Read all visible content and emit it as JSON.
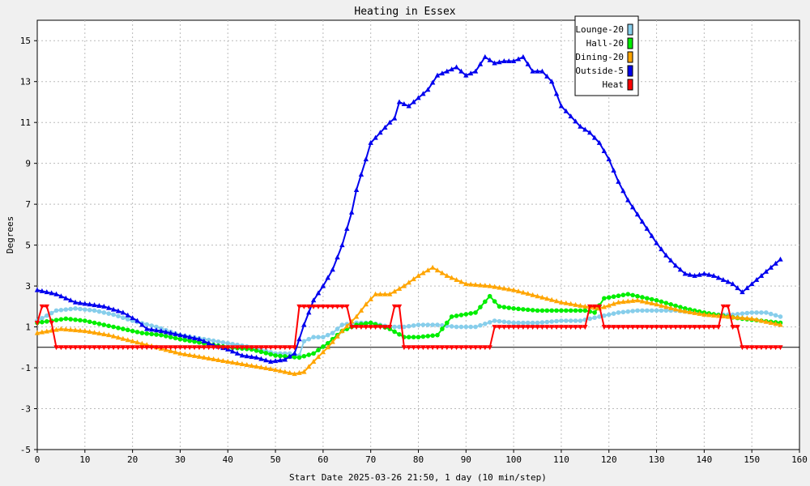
{
  "chart_data": {
    "type": "line",
    "title": "Heating in Essex",
    "xlabel": "Start Date 2025-03-26 21:50, 1 day (10 min/step)",
    "ylabel": "Degrees",
    "xlim": [
      0,
      160
    ],
    "ylim": [
      -5,
      16
    ],
    "xticks": [
      0,
      10,
      20,
      30,
      40,
      50,
      60,
      70,
      80,
      90,
      100,
      110,
      120,
      130,
      140,
      150,
      160
    ],
    "yticks": [
      -5,
      -3,
      -1,
      1,
      3,
      5,
      7,
      9,
      11,
      13,
      15
    ],
    "grid": true,
    "zero_line": true,
    "legend_position": "top-right",
    "series": [
      {
        "name": "Lounge-20",
        "color": "#87ceeb",
        "marker": "circle",
        "points": [
          [
            0,
            1.3
          ],
          [
            4,
            1.8
          ],
          [
            8,
            1.9
          ],
          [
            12,
            1.8
          ],
          [
            16,
            1.6
          ],
          [
            20,
            1.3
          ],
          [
            25,
            1.0
          ],
          [
            30,
            0.6
          ],
          [
            35,
            0.4
          ],
          [
            40,
            0.2
          ],
          [
            45,
            0.0
          ],
          [
            50,
            -0.3
          ],
          [
            53,
            -0.3
          ],
          [
            55,
            -0.4
          ],
          [
            56,
            0.3
          ],
          [
            58,
            0.5
          ],
          [
            60,
            0.5
          ],
          [
            62,
            0.7
          ],
          [
            64,
            1.1
          ],
          [
            67,
            1.2
          ],
          [
            70,
            1.2
          ],
          [
            74,
            1.0
          ],
          [
            77,
            1.0
          ],
          [
            80,
            1.1
          ],
          [
            84,
            1.1
          ],
          [
            88,
            1.0
          ],
          [
            92,
            1.0
          ],
          [
            96,
            1.3
          ],
          [
            100,
            1.2
          ],
          [
            105,
            1.2
          ],
          [
            110,
            1.3
          ],
          [
            114,
            1.3
          ],
          [
            118,
            1.5
          ],
          [
            122,
            1.7
          ],
          [
            126,
            1.8
          ],
          [
            130,
            1.8
          ],
          [
            134,
            1.8
          ],
          [
            138,
            1.7
          ],
          [
            142,
            1.6
          ],
          [
            146,
            1.6
          ],
          [
            150,
            1.7
          ],
          [
            153,
            1.7
          ],
          [
            156,
            1.5
          ]
        ]
      },
      {
        "name": "Hall-20",
        "color": "#00ee00",
        "marker": "circle",
        "points": [
          [
            0,
            1.2
          ],
          [
            3,
            1.3
          ],
          [
            6,
            1.4
          ],
          [
            10,
            1.3
          ],
          [
            14,
            1.1
          ],
          [
            18,
            0.9
          ],
          [
            22,
            0.7
          ],
          [
            26,
            0.6
          ],
          [
            30,
            0.4
          ],
          [
            35,
            0.2
          ],
          [
            40,
            0.0
          ],
          [
            45,
            -0.1
          ],
          [
            50,
            -0.4
          ],
          [
            55,
            -0.5
          ],
          [
            58,
            -0.3
          ],
          [
            61,
            0.2
          ],
          [
            64,
            0.8
          ],
          [
            67,
            1.1
          ],
          [
            70,
            1.2
          ],
          [
            74,
            0.9
          ],
          [
            77,
            0.5
          ],
          [
            80,
            0.5
          ],
          [
            84,
            0.6
          ],
          [
            87,
            1.5
          ],
          [
            92,
            1.7
          ],
          [
            95,
            2.5
          ],
          [
            97,
            2.0
          ],
          [
            100,
            1.9
          ],
          [
            105,
            1.8
          ],
          [
            110,
            1.8
          ],
          [
            115,
            1.8
          ],
          [
            117,
            1.7
          ],
          [
            119,
            2.4
          ],
          [
            124,
            2.6
          ],
          [
            130,
            2.3
          ],
          [
            136,
            1.9
          ],
          [
            140,
            1.7
          ],
          [
            145,
            1.5
          ],
          [
            148,
            1.4
          ],
          [
            152,
            1.3
          ],
          [
            156,
            1.2
          ]
        ]
      },
      {
        "name": "Dining-20",
        "color": "#ffa500",
        "marker": "triangle",
        "points": [
          [
            0,
            0.7
          ],
          [
            5,
            0.9
          ],
          [
            10,
            0.8
          ],
          [
            15,
            0.6
          ],
          [
            20,
            0.3
          ],
          [
            25,
            0.0
          ],
          [
            30,
            -0.3
          ],
          [
            35,
            -0.5
          ],
          [
            40,
            -0.7
          ],
          [
            45,
            -0.9
          ],
          [
            50,
            -1.1
          ],
          [
            54,
            -1.3
          ],
          [
            56,
            -1.2
          ],
          [
            58,
            -0.7
          ],
          [
            61,
            0.0
          ],
          [
            64,
            0.8
          ],
          [
            67,
            1.5
          ],
          [
            69,
            2.1
          ],
          [
            71,
            2.6
          ],
          [
            74,
            2.6
          ],
          [
            77,
            3.0
          ],
          [
            80,
            3.5
          ],
          [
            83,
            3.9
          ],
          [
            86,
            3.5
          ],
          [
            90,
            3.1
          ],
          [
            95,
            3.0
          ],
          [
            100,
            2.8
          ],
          [
            105,
            2.5
          ],
          [
            110,
            2.2
          ],
          [
            115,
            2.0
          ],
          [
            118,
            1.9
          ],
          [
            122,
            2.2
          ],
          [
            126,
            2.3
          ],
          [
            130,
            2.1
          ],
          [
            135,
            1.8
          ],
          [
            140,
            1.6
          ],
          [
            145,
            1.5
          ],
          [
            150,
            1.4
          ],
          [
            156,
            1.1
          ]
        ]
      },
      {
        "name": "Outside-5",
        "color": "#0000ee",
        "marker": "triangle",
        "points": [
          [
            0,
            2.8
          ],
          [
            4,
            2.6
          ],
          [
            8,
            2.2
          ],
          [
            11,
            2.1
          ],
          [
            14,
            2.0
          ],
          [
            18,
            1.7
          ],
          [
            21,
            1.3
          ],
          [
            23,
            0.9
          ],
          [
            26,
            0.8
          ],
          [
            30,
            0.6
          ],
          [
            34,
            0.4
          ],
          [
            37,
            0.1
          ],
          [
            40,
            -0.1
          ],
          [
            43,
            -0.4
          ],
          [
            46,
            -0.5
          ],
          [
            49,
            -0.7
          ],
          [
            52,
            -0.6
          ],
          [
            54,
            -0.3
          ],
          [
            56,
            1.1
          ],
          [
            58,
            2.3
          ],
          [
            60,
            3.0
          ],
          [
            62,
            3.8
          ],
          [
            64,
            5.0
          ],
          [
            66,
            6.6
          ],
          [
            67,
            7.7
          ],
          [
            69,
            9.2
          ],
          [
            70,
            10.0
          ],
          [
            72,
            10.5
          ],
          [
            74,
            11.0
          ],
          [
            75,
            11.2
          ],
          [
            76,
            12.0
          ],
          [
            78,
            11.8
          ],
          [
            80,
            12.2
          ],
          [
            82,
            12.6
          ],
          [
            84,
            13.3
          ],
          [
            86,
            13.5
          ],
          [
            88,
            13.7
          ],
          [
            90,
            13.3
          ],
          [
            92,
            13.5
          ],
          [
            94,
            14.2
          ],
          [
            96,
            13.9
          ],
          [
            98,
            14.0
          ],
          [
            100,
            14.0
          ],
          [
            102,
            14.2
          ],
          [
            104,
            13.5
          ],
          [
            106,
            13.5
          ],
          [
            108,
            13.0
          ],
          [
            110,
            11.8
          ],
          [
            112,
            11.3
          ],
          [
            114,
            10.8
          ],
          [
            116,
            10.5
          ],
          [
            118,
            10.0
          ],
          [
            120,
            9.2
          ],
          [
            122,
            8.1
          ],
          [
            124,
            7.2
          ],
          [
            126,
            6.5
          ],
          [
            128,
            5.8
          ],
          [
            130,
            5.1
          ],
          [
            132,
            4.5
          ],
          [
            134,
            4.0
          ],
          [
            136,
            3.6
          ],
          [
            138,
            3.5
          ],
          [
            140,
            3.6
          ],
          [
            142,
            3.5
          ],
          [
            144,
            3.3
          ],
          [
            146,
            3.1
          ],
          [
            148,
            2.7
          ],
          [
            150,
            3.1
          ],
          [
            152,
            3.5
          ],
          [
            154,
            3.9
          ],
          [
            156,
            4.3
          ]
        ]
      },
      {
        "name": "Heat",
        "color": "#ff0000",
        "marker": "triangle-down",
        "points": [
          [
            0,
            1.2
          ],
          [
            1,
            2.0
          ],
          [
            2,
            2.0
          ],
          [
            3,
            1.2
          ],
          [
            4,
            0.0
          ],
          [
            53,
            0.0
          ],
          [
            54,
            0.0
          ],
          [
            55,
            2.0
          ],
          [
            56,
            2.0
          ],
          [
            65,
            2.0
          ],
          [
            66,
            1.0
          ],
          [
            74,
            1.0
          ],
          [
            75,
            2.0
          ],
          [
            76,
            2.0
          ],
          [
            77,
            0.0
          ],
          [
            95,
            0.0
          ],
          [
            96,
            1.0
          ],
          [
            115,
            1.0
          ],
          [
            116,
            2.0
          ],
          [
            118,
            2.0
          ],
          [
            119,
            1.0
          ],
          [
            143,
            1.0
          ],
          [
            144,
            2.0
          ],
          [
            145,
            2.0
          ],
          [
            146,
            1.0
          ],
          [
            147,
            1.0
          ],
          [
            148,
            0.0
          ],
          [
            156,
            0.0
          ]
        ]
      }
    ]
  }
}
